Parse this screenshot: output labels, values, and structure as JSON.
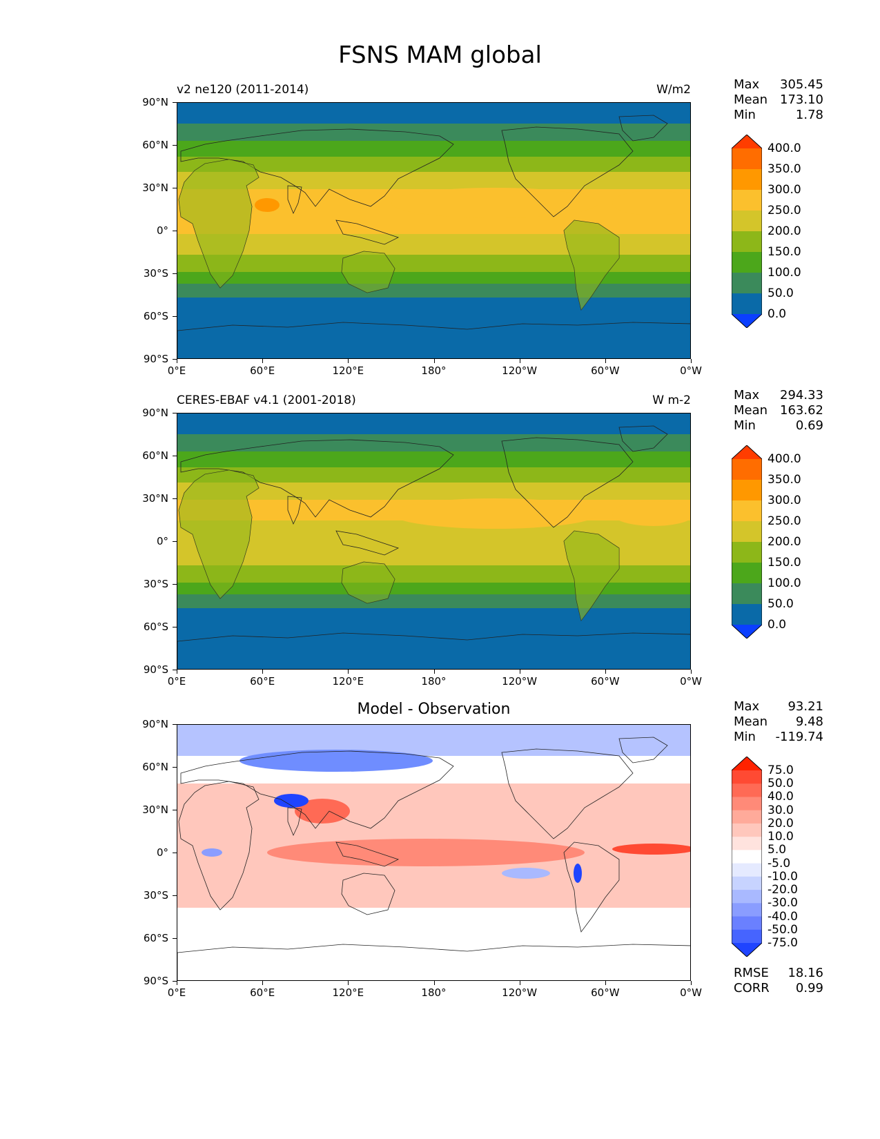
{
  "figure_title": "FSNS MAM global",
  "panels": [
    {
      "title": "v2 ne120 (2011-2014)",
      "units": "W/m2",
      "stats": {
        "max_label": "Max",
        "max": "305.45",
        "mean_label": "Mean",
        "mean": "173.10",
        "min_label": "Min",
        "min": "1.78"
      },
      "colorbar": {
        "levels": [
          "400.0",
          "350.0",
          "300.0",
          "250.0",
          "200.0",
          "150.0",
          "100.0",
          "50.0",
          "0.0"
        ],
        "colors": [
          "#ff3d00",
          "#ff6d00",
          "#ff9800",
          "#fbc02d",
          "#d4c52a",
          "#8db719",
          "#4ca71b",
          "#3b8a5b",
          "#0a6aa8",
          "#0b3fff"
        ]
      }
    },
    {
      "title": "CERES-EBAF v4.1 (2001-2018)",
      "units": "W m-2",
      "stats": {
        "max_label": "Max",
        "max": "294.33",
        "mean_label": "Mean",
        "mean": "163.62",
        "min_label": "Min",
        "min": "0.69"
      },
      "colorbar": {
        "levels": [
          "400.0",
          "350.0",
          "300.0",
          "250.0",
          "200.0",
          "150.0",
          "100.0",
          "50.0",
          "0.0"
        ],
        "colors": [
          "#ff3d00",
          "#ff6d00",
          "#ff9800",
          "#fbc02d",
          "#d4c52a",
          "#8db719",
          "#4ca71b",
          "#3b8a5b",
          "#0a6aa8",
          "#0b3fff"
        ]
      }
    },
    {
      "title": "Model - Observation",
      "units": "",
      "stats": {
        "max_label": "Max",
        "max": "93.21",
        "mean_label": "Mean",
        "mean": "9.48",
        "min_label": "Min",
        "min": "-119.74"
      },
      "colorbar": {
        "levels": [
          "75.0",
          "50.0",
          "40.0",
          "30.0",
          "20.0",
          "10.0",
          "5.0",
          "-5.0",
          "-10.0",
          "-20.0",
          "-30.0",
          "-40.0",
          "-50.0",
          "-75.0"
        ],
        "colors": [
          "#ff2200",
          "#ff4a33",
          "#ff6a55",
          "#ff8a78",
          "#ffaa9a",
          "#ffc7bc",
          "#ffe3de",
          "#ffffff",
          "#e5eaff",
          "#c7d3ff",
          "#a9b9ff",
          "#8a9dff",
          "#6a80ff",
          "#4664ff",
          "#1f44ff"
        ]
      },
      "metrics": {
        "rmse_label": "RMSE",
        "rmse": "18.16",
        "corr_label": "CORR",
        "corr": "0.99"
      }
    }
  ],
  "axes": {
    "lat_ticks": [
      "90°N",
      "60°N",
      "30°N",
      "0°",
      "30°S",
      "60°S",
      "90°S"
    ],
    "lon_ticks": [
      "0°E",
      "60°E",
      "120°E",
      "180°",
      "120°W",
      "60°W",
      "0°W"
    ]
  },
  "map_palette": {
    "polar": "#0a6aa8",
    "subpolar": "#3b8a5b",
    "midlat": "#4ca71b",
    "subtrop": "#8db719",
    "trop": "#d4c52a",
    "hot": "#fbc02d",
    "very_hot": "#ff9800"
  }
}
